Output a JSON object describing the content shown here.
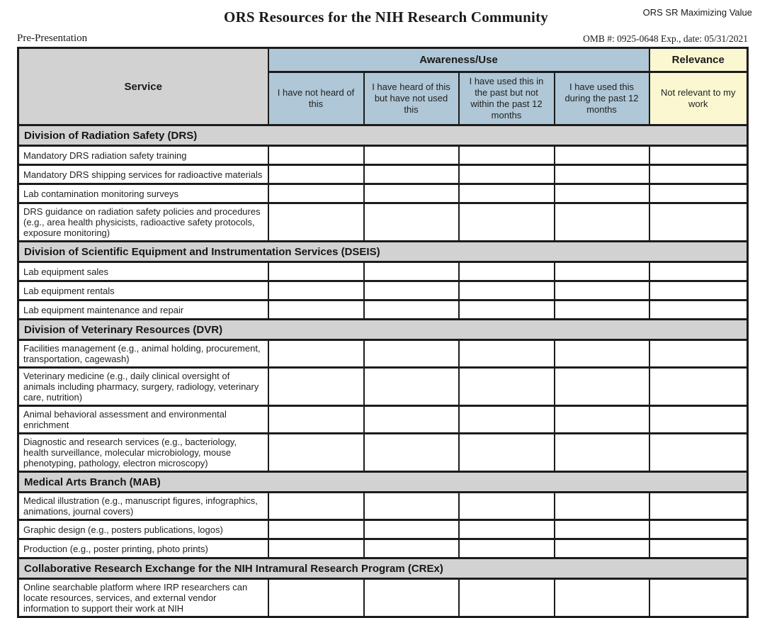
{
  "header": {
    "title": "ORS Resources for the NIH Research Community",
    "corner_label": "ORS SR Maximizing Value",
    "pre_presentation": "Pre-Presentation",
    "omb_line": "OMB #: 0925-0648 Exp., date: 05/31/2021"
  },
  "table": {
    "service_header": "Service",
    "group_headers": {
      "awareness": "Awareness/Use",
      "relevance": "Relevance"
    },
    "columns": [
      "I have not heard of this",
      "I have heard of this but have not used this",
      "I have used this in the past but not within the past 12 months",
      "I have used this during the past 12 months",
      "Not relevant to my work"
    ],
    "sections": [
      {
        "title": "Division of Radiation Safety (DRS)",
        "rows": [
          "Mandatory DRS radiation safety training",
          "Mandatory DRS shipping services for radioactive materials",
          "Lab contamination monitoring surveys",
          "DRS guidance on radiation safety policies and procedures (e.g., area health physicists, radioactive safety protocols, exposure monitoring)"
        ]
      },
      {
        "title": "Division of Scientific Equipment and Instrumentation Services (DSEIS)",
        "rows": [
          "Lab equipment sales",
          "Lab equipment rentals",
          "Lab equipment maintenance and repair"
        ]
      },
      {
        "title": "Division of Veterinary Resources (DVR)",
        "rows": [
          "Facilities management (e.g., animal holding, procurement, transportation, cagewash)",
          "Veterinary medicine (e.g., daily clinical oversight of animals including pharmacy, surgery, radiology, veterinary care, nutrition)",
          "Animal behavioral assessment and environmental enrichment",
          "Diagnostic and research services (e.g., bacteriology, health surveillance, molecular microbiology, mouse phenotyping, pathology, electron microscopy)"
        ]
      },
      {
        "title": "Medical Arts Branch (MAB)",
        "rows": [
          "Medical illustration (e.g., manuscript figures, infographics, animations, journal covers)",
          "Graphic design (e.g., posters publications, logos)",
          "Production (e.g., poster printing, photo prints)"
        ]
      },
      {
        "title": "Collaborative Research Exchange for the NIH Intramural Research Program (CREx)",
        "rows": [
          "Online searchable platform where IRP researchers can locate resources, services, and external vendor information to support their work at NIH"
        ]
      }
    ]
  },
  "colors": {
    "awareness_blue": "#afc7d6",
    "relevance_yellow": "#fbf8d1",
    "section_gray": "#d2d2d2",
    "border_black": "#1c1c1c"
  }
}
